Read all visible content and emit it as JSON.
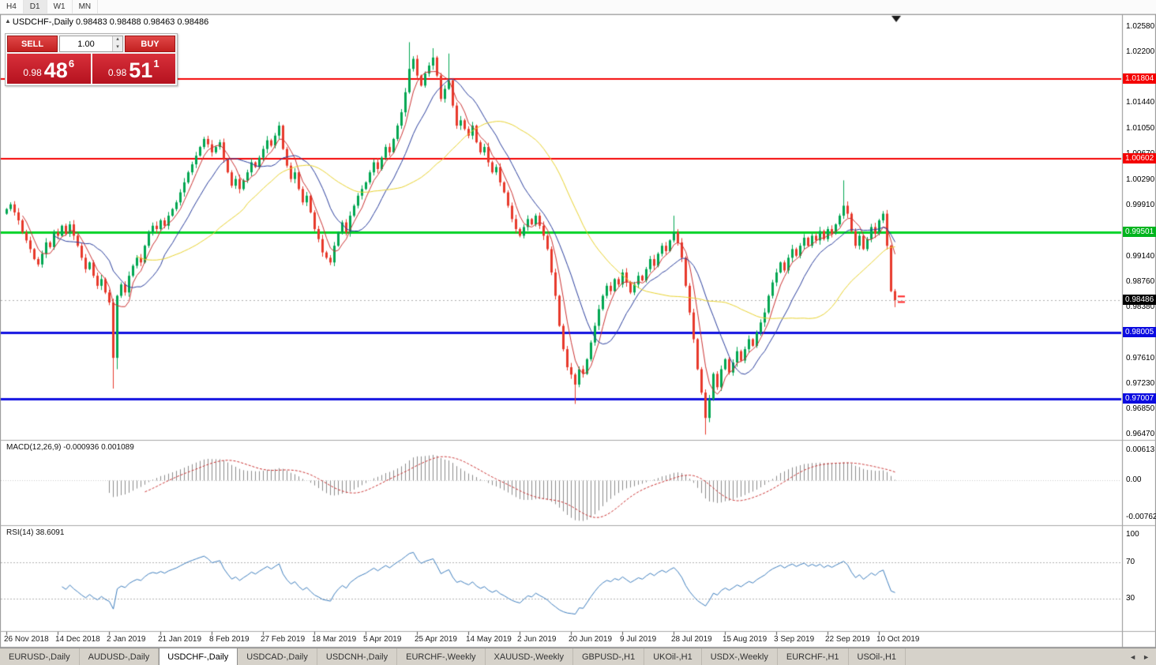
{
  "timeframe_toolbar": {
    "items": [
      "H4",
      "D1",
      "W1",
      "MN"
    ],
    "active": "D1"
  },
  "chart_header": {
    "title": "USDCHF-,Daily 0.98483 0.98488 0.98463 0.98486"
  },
  "trade_panel": {
    "sell_label": "SELL",
    "buy_label": "BUY",
    "volume": "1.00",
    "sell_price": {
      "small": "0.98",
      "big": "48",
      "sup": "6"
    },
    "buy_price": {
      "small": "0.98",
      "big": "51",
      "sup": "1"
    }
  },
  "panes": {
    "macd": {
      "name": "MACD(12,26,9)",
      "values": "-0.000936 0.001089",
      "axis": [
        {
          "text": "0.00613",
          "value": 0.00613
        },
        {
          "text": "0.00",
          "value": 0
        },
        {
          "text": "-0.00762",
          "value": -0.00762
        }
      ]
    },
    "rsi": {
      "name": "RSI(14)",
      "value": "38.6091",
      "axis": [
        {
          "text": "100",
          "value": 100
        },
        {
          "text": "70",
          "value": 70
        },
        {
          "text": "30",
          "value": 30
        }
      ]
    }
  },
  "price_axis": {
    "labels": [
      "1.02580",
      "1.02200",
      "1.01820",
      "1.01440",
      "1.01050",
      "1.00670",
      "1.00290",
      "0.99910",
      "0.99530",
      "0.99140",
      "0.98760",
      "0.98380",
      "0.98000",
      "0.97610",
      "0.97230",
      "0.96850",
      "0.96470"
    ],
    "badges": [
      {
        "text": "1.01804",
        "color": "#f40000",
        "name": "red-line-price-badge"
      },
      {
        "text": "1.00602",
        "color": "#f40000",
        "name": "red-line-price-badge"
      },
      {
        "text": "0.99501",
        "color": "#00b41e",
        "name": "green-line-price-badge"
      },
      {
        "text": "0.98486",
        "color": "#000000",
        "name": "current-price-badge"
      },
      {
        "text": "0.98005",
        "color": "#0b0be0",
        "name": "blue-line-price-badge"
      },
      {
        "text": "0.97007",
        "color": "#0b0be0",
        "name": "blue-line-price-badge"
      }
    ]
  },
  "date_axis": [
    "26 Nov 2018",
    "14 Dec 2018",
    "2 Jan 2019",
    "21 Jan 2019",
    "8 Feb 2019",
    "27 Feb 2019",
    "18 Mar 2019",
    "5 Apr 2019",
    "25 Apr 2019",
    "14 May 2019",
    "2 Jun 2019",
    "20 Jun 2019",
    "9 Jul 2019",
    "28 Jul 2019",
    "15 Aug 2019",
    "3 Sep 2019",
    "22 Sep 2019",
    "10 Oct 2019"
  ],
  "tabs": {
    "items": [
      "EURUSD-,Daily",
      "AUDUSD-,Daily",
      "USDCHF-,Daily",
      "USDCAD-,Daily",
      "USDCNH-,Daily",
      "EURCHF-,Weekly",
      "XAUUSD-,Weekly",
      "GBPUSD-,H1",
      "UKOil-,H1",
      "USDX-,Weekly",
      "EURCHF-,H1",
      "USOil-,H1"
    ],
    "active_index": 2
  },
  "chart_data": {
    "type": "candlestick",
    "symbol": "USDCHF-",
    "timeframe": "Daily",
    "ohlc_current": {
      "open": 0.98483,
      "high": 0.98488,
      "low": 0.98463,
      "close": 0.98486
    },
    "bid": 0.98486,
    "ask": 0.98511,
    "up_color": "#00a651",
    "down_color": "#e8392b",
    "closes": [
      0.9985,
      0.9992,
      0.998,
      0.9968,
      0.995,
      0.9938,
      0.9925,
      0.991,
      0.9902,
      0.9918,
      0.9935,
      0.9928,
      0.995,
      0.9945,
      0.996,
      0.9948,
      0.9962,
      0.9945,
      0.993,
      0.9912,
      0.9895,
      0.9905,
      0.9885,
      0.987,
      0.988,
      0.986,
      0.9845,
      0.9762,
      0.9855,
      0.9872,
      0.986,
      0.9885,
      0.99,
      0.9912,
      0.9905,
      0.993,
      0.995,
      0.996,
      0.9955,
      0.9968,
      0.996,
      0.9975,
      0.9985,
      0.9995,
      1.001,
      1.0025,
      1.004,
      1.0052,
      1.0065,
      1.0078,
      1.009,
      1.0082,
      1.007,
      1.0078,
      1.0085,
      1.006,
      1.004,
      1.002,
      1.003,
      1.0015,
      1.0028,
      1.004,
      1.0055,
      1.0048,
      1.0062,
      1.0075,
      1.0088,
      1.008,
      1.0095,
      1.011,
      1.0075,
      1.005,
      1.003,
      1.004,
      1.0015,
      0.9995,
      1.0005,
      0.998,
      0.9955,
      0.994,
      0.992,
      0.9912,
      0.9905,
      0.993,
      0.995,
      0.9965,
      0.995,
      0.9975,
      0.999,
      1.0005,
      1.0015,
      1.0025,
      1.004,
      1.0055,
      1.0045,
      1.0062,
      1.0078,
      1.007,
      1.009,
      1.011,
      1.013,
      1.016,
      1.0195,
      1.021,
      1.0185,
      1.017,
      1.0188,
      1.02,
      1.0212,
      1.0185,
      1.015,
      1.0165,
      1.0178,
      1.014,
      1.011,
      1.0118,
      1.0105,
      1.0095,
      1.011,
      1.0085,
      1.007,
      1.0078,
      1.0055,
      1.004,
      1.0048,
      1.0025,
      1.001,
      0.999,
      0.997,
      0.9955,
      0.9945,
      0.9958,
      0.997,
      0.9962,
      0.9975,
      0.996,
      0.9945,
      0.9925,
      0.989,
      0.9855,
      0.981,
      0.9775,
      0.9748,
      0.9737,
      0.9722,
      0.9745,
      0.9738,
      0.976,
      0.9785,
      0.981,
      0.9835,
      0.9855,
      0.987,
      0.9862,
      0.988,
      0.9872,
      0.989,
      0.9875,
      0.986,
      0.9872,
      0.9885,
      0.9878,
      0.9895,
      0.991,
      0.99,
      0.9918,
      0.993,
      0.9922,
      0.9938,
      0.995,
      0.9935,
      0.9912,
      0.987,
      0.983,
      0.979,
      0.9745,
      0.971,
      0.9672,
      0.97,
      0.9738,
      0.9718,
      0.9745,
      0.976,
      0.974,
      0.9755,
      0.9772,
      0.9758,
      0.9775,
      0.979,
      0.978,
      0.98,
      0.9815,
      0.983,
      0.9855,
      0.9875,
      0.989,
      0.9905,
      0.9893,
      0.9912,
      0.9925,
      0.9915,
      0.993,
      0.9942,
      0.993,
      0.9945,
      0.9938,
      0.9952,
      0.994,
      0.9955,
      0.9948,
      0.9962,
      0.9975,
      0.999,
      0.9978,
      0.9952,
      0.993,
      0.9945,
      0.9925,
      0.994,
      0.9958,
      0.9948,
      0.9968,
      0.9978,
      0.993,
      0.9862,
      0.98486
    ],
    "wick_overrides": {
      "27": {
        "low": 0.9716
      },
      "28": {
        "low": 0.9745
      },
      "102": {
        "high": 1.0235
      },
      "108": {
        "high": 1.0226
      },
      "112": {
        "high": 1.0218
      },
      "144": {
        "low": 0.9693
      },
      "169": {
        "high": 0.9975
      },
      "177": {
        "low": 0.9647
      },
      "212": {
        "high": 1.0028
      },
      "225": {
        "low": 0.9838
      }
    },
    "overlays": [
      {
        "type": "sma",
        "period": 5,
        "color": "#cc3333"
      },
      {
        "type": "sma",
        "period": 13,
        "color": "#2b3f9e"
      },
      {
        "type": "sma",
        "period": 34,
        "color": "#e9d32f"
      }
    ],
    "hlines": [
      {
        "price": 1.01804,
        "color": "#f40000",
        "width": 2
      },
      {
        "price": 1.00602,
        "color": "#f40000",
        "width": 2
      },
      {
        "price": 0.99501,
        "color": "#00d225",
        "width": 3
      },
      {
        "price": 0.98005,
        "color": "#1010e0",
        "width": 3
      },
      {
        "price": 0.97007,
        "color": "#1010e0",
        "width": 3
      },
      {
        "price": 0.98486,
        "color": "#b0b0b0",
        "width": 1,
        "style": "dot"
      }
    ],
    "macd": {
      "fast": 12,
      "slow": 26,
      "signal": 9,
      "histogram_color": "#8c8c8c",
      "signal_color": "#cc3333",
      "ymax": 0.00613,
      "ymin": -0.00762
    },
    "rsi": {
      "period": 14,
      "color": "#3f7fbf",
      "last": 38.6091,
      "levels": [
        70,
        30
      ],
      "range": [
        0,
        100
      ]
    },
    "x_label_indices": [
      0,
      13,
      26,
      39,
      52,
      65,
      78,
      91,
      104,
      117,
      130,
      143,
      156,
      169,
      182,
      195,
      208,
      221
    ]
  }
}
